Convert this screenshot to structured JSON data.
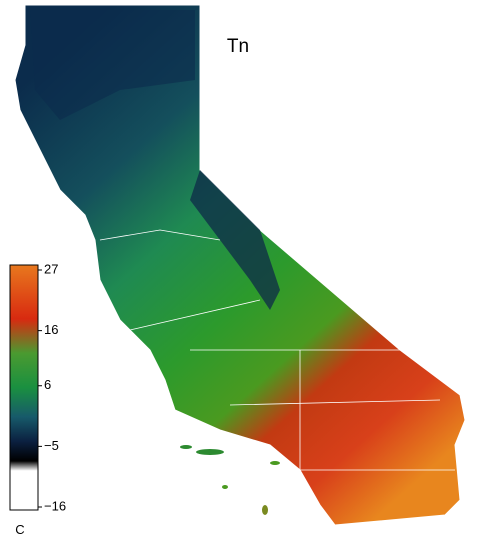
{
  "title": "Tn",
  "colorbar": {
    "range": [
      -16,
      27
    ],
    "ticks": [
      27,
      16,
      6,
      {
        "value": -5,
        "label": "−5"
      },
      {
        "value": -16,
        "label": "−16"
      }
    ],
    "unit": "C"
  }
}
